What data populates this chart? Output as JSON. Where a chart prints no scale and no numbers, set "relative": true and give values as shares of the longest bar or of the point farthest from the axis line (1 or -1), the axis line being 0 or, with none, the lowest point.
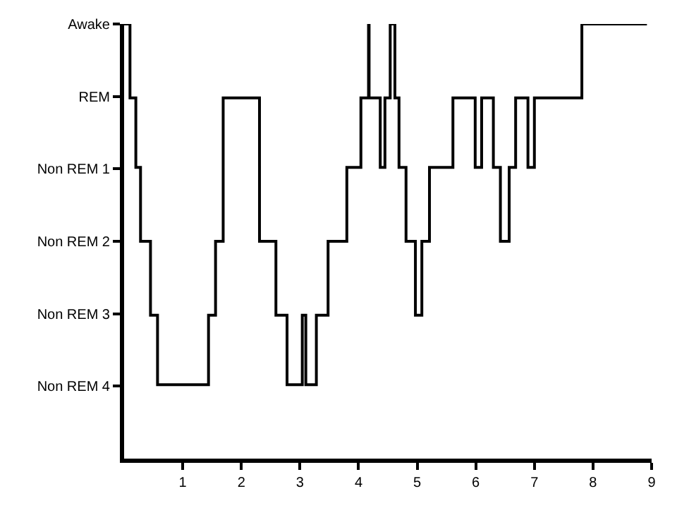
{
  "chart_data": {
    "type": "step",
    "relative": true,
    "x": [
      0,
      0.1,
      0.2,
      0.28,
      0.45,
      0.57,
      1.44,
      1.56,
      1.69,
      2.31,
      2.59,
      2.78,
      3.04,
      3.1,
      3.28,
      3.48,
      3.8,
      4.04,
      4.17,
      4.18,
      4.37,
      4.45,
      4.54,
      4.62,
      4.69,
      4.81,
      4.97,
      5.08,
      5.21,
      5.61,
      5.99,
      6.1,
      6.3,
      6.42,
      6.57,
      6.68,
      6.89,
      7.0,
      7.81,
      8.92
    ],
    "y_categories": [
      "Awake",
      "REM",
      "Non REM 1",
      "Non REM 2",
      "Non REM 3",
      "Non REM 4"
    ],
    "values": [
      1,
      0.83,
      0.67,
      0.5,
      0.33,
      0.17,
      0.33,
      0.5,
      0.83,
      0.5,
      0.33,
      0.17,
      0.33,
      0.17,
      0.33,
      0.5,
      0.67,
      0.83,
      1,
      0.83,
      0.67,
      0.83,
      1,
      0.83,
      0.67,
      0.5,
      0.33,
      0.5,
      0.67,
      0.83,
      0.67,
      0.83,
      0.67,
      0.5,
      0.67,
      0.83,
      0.67,
      0.83,
      1,
      1
    ],
    "color": "#000000",
    "xlim": [
      0,
      9
    ],
    "xticks": [
      1,
      2,
      3,
      4,
      5,
      6,
      7,
      8,
      9
    ]
  }
}
